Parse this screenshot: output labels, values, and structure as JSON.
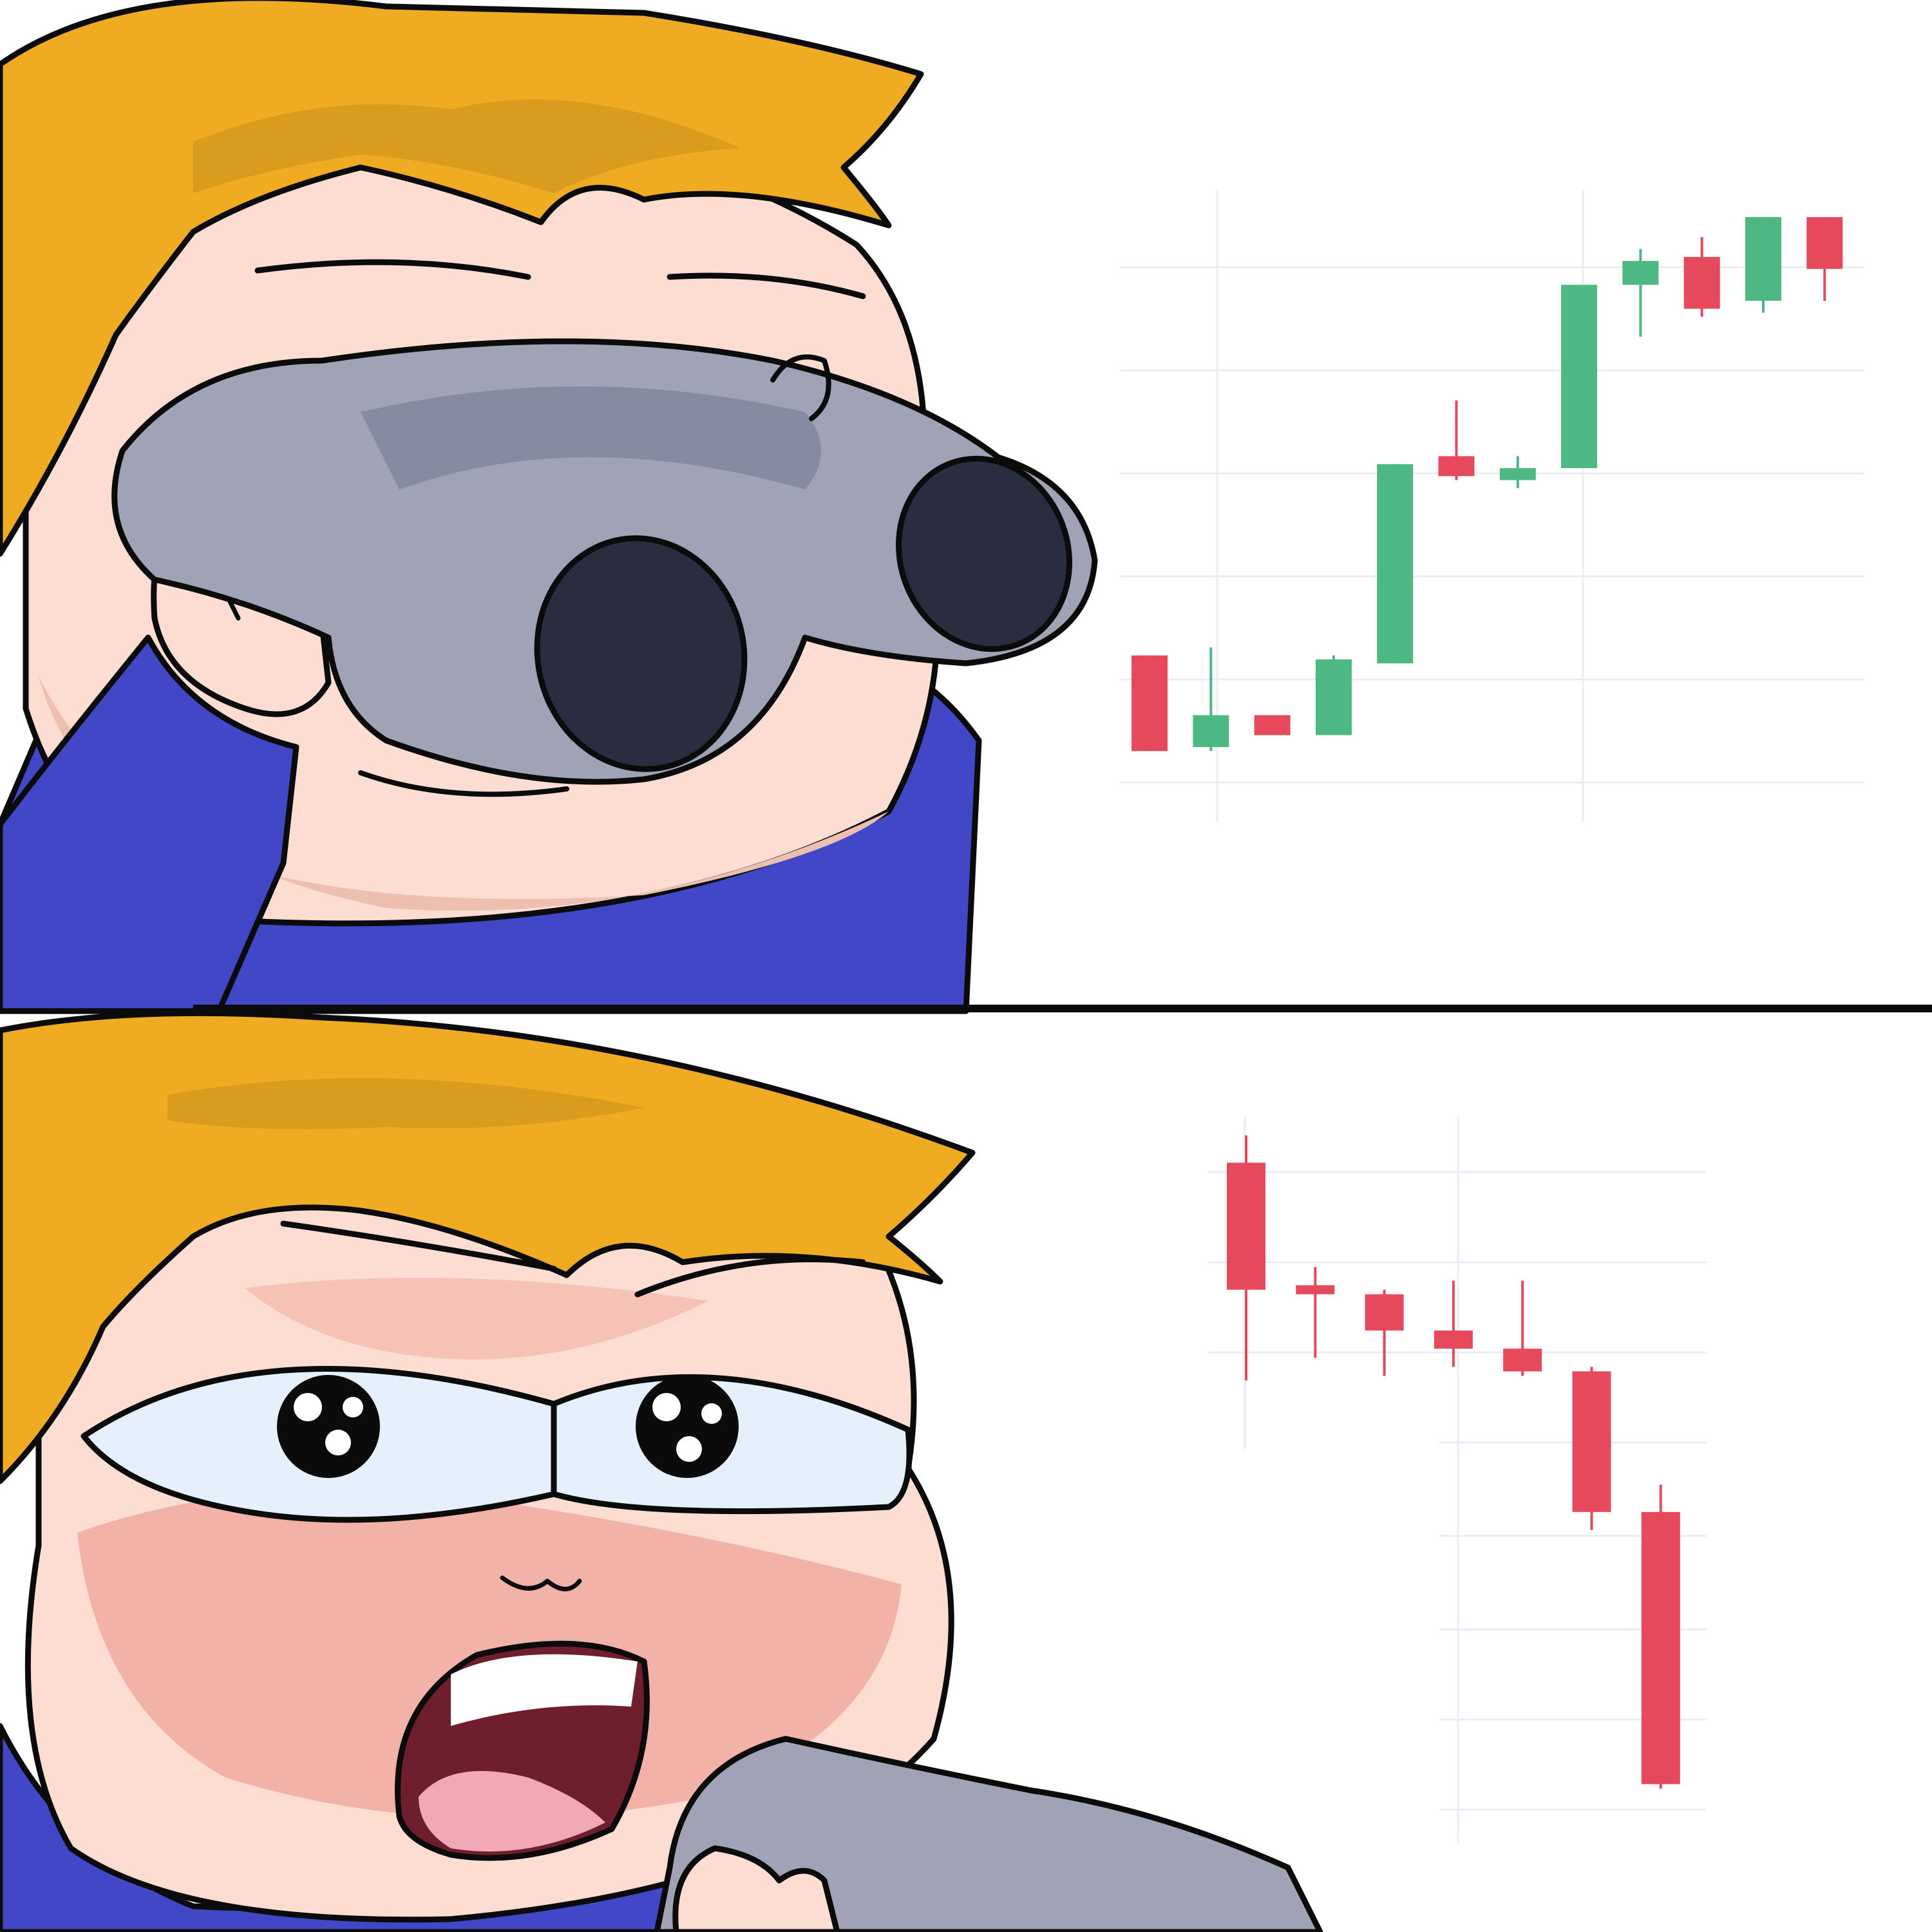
{
  "colors": {
    "hair": "#EFAC22",
    "hair_shadow": "#C8901C",
    "skin": "#FDDDD2",
    "skin_shadow": "#EDBFB0",
    "blush": "#E98E84",
    "shirt": "#4048C8",
    "shirt_light": "#5B68E2",
    "binocular": "#A0A2B6",
    "binocular_dark": "#73788F",
    "lens": "#2A2D40",
    "eye_white": "#E6F0FC",
    "mouth": "#6E1E2C",
    "tongue": "#F2A8B5",
    "bull": "#4DB882",
    "bear": "#E5495B",
    "grid": "#E8EEF5",
    "outline": "#0B0B0B"
  },
  "panels": [
    {
      "mood": "happy",
      "reaction": "smiling-through-binoculars"
    },
    {
      "mood": "shocked",
      "reaction": "blushing-wide-eyed"
    }
  ],
  "chart_data": [
    {
      "type": "candlestick",
      "trend": "up",
      "grid": true,
      "candles": [
        {
          "o": 22.0,
          "h": 22.0,
          "l": 10.0,
          "c": 10.0
        },
        {
          "o": 10.5,
          "h": 23.0,
          "l": 10.0,
          "c": 14.5
        },
        {
          "o": 14.5,
          "h": 14.5,
          "l": 12.0,
          "c": 12.0
        },
        {
          "o": 12.0,
          "h": 22.0,
          "l": 12.0,
          "c": 21.5
        },
        {
          "o": 21.0,
          "h": 46.0,
          "l": 21.0,
          "c": 46.0
        },
        {
          "o": 47.0,
          "h": 54.0,
          "l": 44.0,
          "c": 44.5
        },
        {
          "o": 44.0,
          "h": 47.0,
          "l": 43.0,
          "c": 45.5
        },
        {
          "o": 45.5,
          "h": 68.5,
          "l": 45.5,
          "c": 68.5
        },
        {
          "o": 68.5,
          "h": 73.0,
          "l": 62.0,
          "c": 71.5
        },
        {
          "o": 72.0,
          "h": 74.5,
          "l": 64.5,
          "c": 65.5
        },
        {
          "o": 66.5,
          "h": 77.0,
          "l": 65.0,
          "c": 77.0
        },
        {
          "o": 77.0,
          "h": 77.0,
          "l": 66.5,
          "c": 70.5
        }
      ]
    },
    {
      "type": "candlestick",
      "trend": "down",
      "grid": true,
      "candles": [
        {
          "o": 95.0,
          "h": 98.0,
          "l": 71.0,
          "c": 81.0
        },
        {
          "o": 81.5,
          "h": 83.5,
          "l": 73.5,
          "c": 80.5
        },
        {
          "o": 80.5,
          "h": 81.0,
          "l": 71.5,
          "c": 76.5
        },
        {
          "o": 76.5,
          "h": 82.0,
          "l": 72.5,
          "c": 74.5
        },
        {
          "o": 74.5,
          "h": 82.0,
          "l": 71.5,
          "c": 72.0
        },
        {
          "o": 72.0,
          "h": 72.5,
          "l": 54.5,
          "c": 56.5
        },
        {
          "o": 56.5,
          "h": 59.5,
          "l": 26.0,
          "c": 26.5
        }
      ]
    }
  ]
}
